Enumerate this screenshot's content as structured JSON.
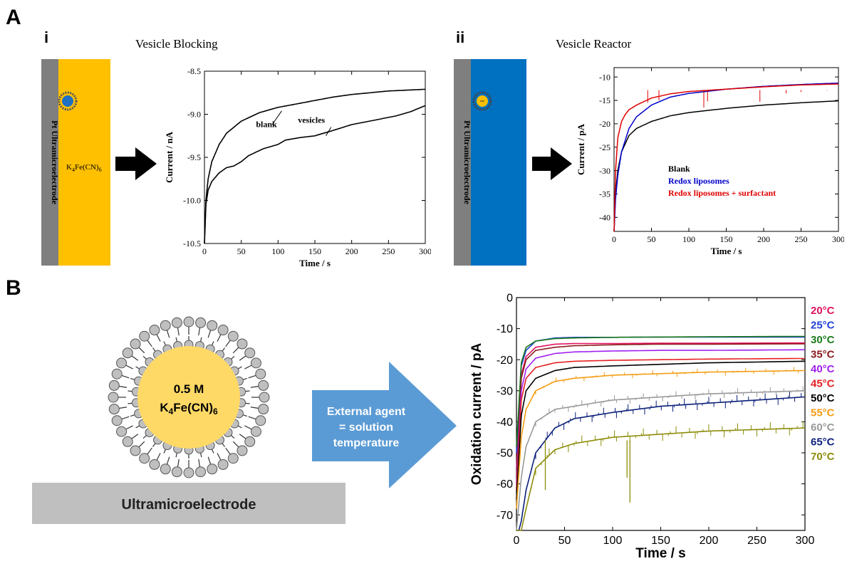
{
  "panel_a": {
    "letter": "A",
    "sub_i": {
      "letter": "i",
      "title": "Vesicle Blocking",
      "electrode_label": "Pt Ultramicroelectrode",
      "solution_label_main": "K",
      "solution_label_sub1": "4",
      "solution_label_mid": "Fe(CN)",
      "solution_label_sub2": "6",
      "colors": {
        "solution": "#FFC000",
        "electrode": "#7F7F7F",
        "vesicle_core": "#1F6FC4"
      }
    },
    "sub_ii": {
      "letter": "ii",
      "title": "Vesicle Reactor",
      "electrode_label": "Pt Ultramicroelectrode",
      "colors": {
        "solution": "#0070C0",
        "electrode": "#7F7F7F",
        "vesicle_core": "#FFC000"
      }
    }
  },
  "panel_b": {
    "letter": "B",
    "vesicle_text_line1": "0.5 M",
    "vesicle_text_line2_main": "K",
    "vesicle_text_line2_sub1": "4",
    "vesicle_text_line2_mid": "Fe(CN)",
    "vesicle_text_line2_sub2": "6",
    "electrode_label": "Ultramicroelectrode",
    "arrow_line1": "External agent",
    "arrow_line2": "= solution",
    "arrow_line3": "temperature",
    "colors": {
      "vesicle_core": "#FFD966",
      "electrode": "#BFBFBF",
      "arrow": "#5B9BD5",
      "lipid": "#BFBFBF"
    }
  },
  "chart_data": [
    {
      "type": "line",
      "xlabel": "Time / s",
      "ylabel": "Current / nA",
      "xlim": [
        0,
        300
      ],
      "ylim": [
        -10.5,
        -8.5
      ],
      "xticks": [
        0,
        50,
        100,
        150,
        200,
        250,
        300
      ],
      "yticks": [
        -8.5,
        -9.0,
        -9.5,
        -10.0,
        -10.5
      ],
      "ytick_labels": [
        "-8.5",
        "-9.0",
        "-9.5",
        "-10.0",
        "-10.5"
      ],
      "annotations": [
        "blank",
        "vesicles"
      ],
      "series": [
        {
          "name": "blank",
          "color": "#000000",
          "x": [
            0,
            2,
            5,
            10,
            20,
            30,
            50,
            75,
            100,
            125,
            150,
            175,
            200,
            225,
            250,
            275,
            300
          ],
          "y": [
            -10.5,
            -10.0,
            -9.75,
            -9.55,
            -9.35,
            -9.22,
            -9.08,
            -8.98,
            -8.92,
            -8.88,
            -8.84,
            -8.8,
            -8.77,
            -8.75,
            -8.73,
            -8.72,
            -8.71
          ]
        },
        {
          "name": "vesicles",
          "color": "#000000",
          "x": [
            0,
            2,
            5,
            10,
            20,
            30,
            40,
            50,
            60,
            80,
            100,
            110,
            130,
            150,
            170,
            200,
            230,
            260,
            280,
            300
          ],
          "y": [
            -10.5,
            -10.05,
            -9.88,
            -9.78,
            -9.68,
            -9.62,
            -9.6,
            -9.55,
            -9.48,
            -9.4,
            -9.35,
            -9.3,
            -9.27,
            -9.25,
            -9.2,
            -9.12,
            -9.07,
            -9.02,
            -8.97,
            -8.9
          ]
        }
      ]
    },
    {
      "type": "line",
      "xlabel": "Time / s",
      "ylabel": "Current / pA",
      "xlim": [
        0,
        300
      ],
      "ylim": [
        -43,
        -8
      ],
      "xticks": [
        0,
        50,
        100,
        150,
        200,
        250,
        300
      ],
      "yticks": [
        -10,
        -15,
        -20,
        -25,
        -30,
        -35,
        -40
      ],
      "series": [
        {
          "name": "Blank",
          "color": "#000000",
          "x": [
            0,
            2,
            5,
            10,
            20,
            30,
            50,
            75,
            100,
            150,
            200,
            250,
            300
          ],
          "y": [
            -43,
            -35,
            -30,
            -26,
            -22.5,
            -21,
            -19.5,
            -18.3,
            -17.6,
            -16.7,
            -16.0,
            -15.5,
            -15.1
          ]
        },
        {
          "name": "Redox liposomes",
          "color": "#0000CC",
          "x": [
            0,
            2,
            5,
            10,
            20,
            30,
            50,
            75,
            100,
            150,
            200,
            250,
            300
          ],
          "y": [
            -43,
            -36,
            -31,
            -26,
            -21,
            -18.5,
            -16,
            -14.3,
            -13.5,
            -12.6,
            -12.0,
            -11.6,
            -11.3
          ]
        },
        {
          "name": "Redox liposomes + surfactant",
          "color": "#E00000",
          "x": [
            0,
            2,
            5,
            10,
            15,
            20,
            30,
            50,
            75,
            100,
            150,
            200,
            250,
            300
          ],
          "y": [
            -43,
            -30,
            -23,
            -19.5,
            -18,
            -17,
            -16,
            -14.5,
            -13.6,
            -13.1,
            -12.6,
            -12.1,
            -11.7,
            -11.5
          ]
        }
      ]
    },
    {
      "type": "line",
      "xlabel": "Time / s",
      "ylabel": "Oxidation current / pA",
      "xlim": [
        0,
        300
      ],
      "ylim": [
        -75,
        0
      ],
      "xticks": [
        0,
        50,
        100,
        150,
        200,
        250,
        300
      ],
      "yticks": [
        0,
        -10,
        -20,
        -30,
        -40,
        -50,
        -60,
        -70
      ],
      "series": [
        {
          "name": "20°C",
          "color": "#E0115F",
          "x": [
            0,
            5,
            10,
            20,
            40,
            60,
            100,
            150,
            200,
            300
          ],
          "y": [
            -55,
            -25,
            -19,
            -16,
            -15,
            -14.8,
            -14.8,
            -14.7,
            -14.7,
            -14.6
          ]
        },
        {
          "name": "25°C",
          "color": "#1F3FD6",
          "x": [
            0,
            5,
            10,
            20,
            40,
            60,
            100,
            150,
            200,
            300
          ],
          "y": [
            -50,
            -22,
            -17,
            -14,
            -13,
            -12.8,
            -12.8,
            -12.7,
            -12.7,
            -12.7
          ]
        },
        {
          "name": "30°C",
          "color": "#1B7A1B",
          "x": [
            0,
            5,
            10,
            20,
            40,
            60,
            100,
            150,
            200,
            300
          ],
          "y": [
            -48,
            -21,
            -16,
            -14,
            -13.2,
            -13,
            -12.8,
            -12.7,
            -12.6,
            -12.5
          ]
        },
        {
          "name": "35°C",
          "color": "#8B1A1A",
          "x": [
            0,
            5,
            10,
            20,
            40,
            60,
            100,
            150,
            200,
            300
          ],
          "y": [
            -58,
            -26,
            -20,
            -17,
            -16,
            -15.5,
            -15.2,
            -15.0,
            -15.0,
            -14.9
          ]
        },
        {
          "name": "40°C",
          "color": "#A020F0",
          "x": [
            0,
            5,
            10,
            20,
            40,
            60,
            100,
            150,
            200,
            300
          ],
          "y": [
            -60,
            -30,
            -23,
            -19.5,
            -18,
            -17.5,
            -17.2,
            -17.0,
            -17.0,
            -16.8
          ]
        },
        {
          "name": "45°C",
          "color": "#E52020",
          "x": [
            0,
            5,
            10,
            20,
            40,
            60,
            100,
            150,
            200,
            300
          ],
          "y": [
            -62,
            -33,
            -26,
            -22.5,
            -21,
            -20.5,
            -20.2,
            -20,
            -19.8,
            -19.6
          ]
        },
        {
          "name": "50°C",
          "color": "#000000",
          "x": [
            0,
            5,
            10,
            20,
            40,
            60,
            100,
            150,
            200,
            300
          ],
          "y": [
            -65,
            -38,
            -30,
            -26,
            -23.5,
            -22.5,
            -22,
            -21.5,
            -21,
            -20.5
          ]
        },
        {
          "name": "55°C",
          "color": "#F39C12",
          "x": [
            0,
            5,
            10,
            20,
            40,
            60,
            100,
            150,
            200,
            300
          ],
          "y": [
            -68,
            -45,
            -36,
            -30,
            -27,
            -26,
            -25,
            -24.5,
            -24,
            -23.5
          ]
        },
        {
          "name": "60°C",
          "color": "#999999",
          "x": [
            0,
            5,
            10,
            20,
            40,
            60,
            100,
            150,
            200,
            300
          ],
          "y": [
            -75,
            -58,
            -48,
            -40,
            -36,
            -35,
            -33,
            -32,
            -31,
            -30
          ]
        },
        {
          "name": "65°C",
          "color": "#0B1F7A",
          "x": [
            0,
            5,
            10,
            20,
            40,
            60,
            100,
            150,
            200,
            300
          ],
          "y": [
            -78,
            -72,
            -62,
            -50,
            -42,
            -39,
            -37,
            -35,
            -34,
            -32
          ]
        },
        {
          "name": "70°C",
          "color": "#8C8C0A",
          "x": [
            0,
            5,
            10,
            20,
            40,
            60,
            100,
            150,
            200,
            300
          ],
          "y": [
            -80,
            -75,
            -68,
            -55,
            -49,
            -47,
            -45,
            -44,
            -43,
            -42
          ]
        }
      ]
    }
  ]
}
